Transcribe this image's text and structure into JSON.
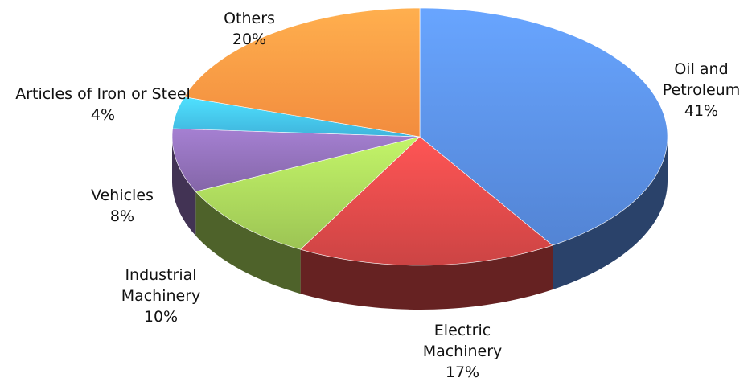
{
  "chart_data": {
    "type": "pie",
    "categories": [
      "Oil and Petroleum",
      "Electric Machinery",
      "Industrial Machinery",
      "Vehicles",
      "Articles of Iron or Steel",
      "Others"
    ],
    "values": [
      41,
      17,
      10,
      8,
      4,
      20
    ],
    "value_labels": [
      "41%",
      "17%",
      "10%",
      "8%",
      "4%",
      "20%"
    ],
    "colors": [
      "#5384d4",
      "#cc4444",
      "#9cc454",
      "#8466a8",
      "#3fb4dc",
      "#f28c3e"
    ]
  }
}
